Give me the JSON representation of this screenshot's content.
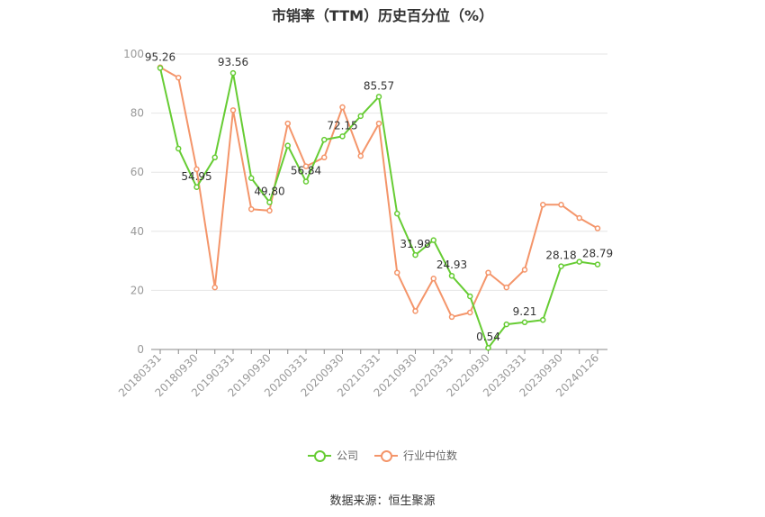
{
  "chart_data": {
    "type": "line",
    "title": "市销率（TTM）历史百分位（%）",
    "ylim": [
      0,
      100
    ],
    "yticks": [
      0,
      20,
      40,
      60,
      80,
      100
    ],
    "x": [
      "20180331",
      "20180630",
      "20180930",
      "20181231",
      "20190331",
      "20190630",
      "20190930",
      "20191231",
      "20200331",
      "20200630",
      "20200930",
      "20201231",
      "20210331",
      "20210630",
      "20210930",
      "20211231",
      "20220331",
      "20220630",
      "20220930",
      "20221231",
      "20230331",
      "20230630",
      "20230930",
      "20231231",
      "20240126"
    ],
    "xtick_labels": [
      "20180331",
      "20180930",
      "20190331",
      "20190930",
      "20200331",
      "20200930",
      "20210331",
      "20210930",
      "20220331",
      "20220930",
      "20230331",
      "20230930",
      "20240126"
    ],
    "grid": true,
    "legend_position": "bottom",
    "series": [
      {
        "name": "公司",
        "color": "#66cc33",
        "values": [
          95.26,
          68.0,
          54.95,
          65.0,
          93.56,
          58.0,
          49.8,
          69.0,
          56.84,
          71.0,
          72.15,
          79.0,
          85.57,
          46.0,
          31.98,
          37.0,
          24.93,
          18.0,
          0.54,
          8.5,
          9.21,
          10.0,
          28.18,
          29.7,
          28.79
        ],
        "labels": [
          "95.26",
          null,
          "54.95",
          null,
          "93.56",
          null,
          "49.80",
          null,
          "56.84",
          null,
          "72.15",
          null,
          "85.57",
          null,
          "31.98",
          null,
          "24.93",
          null,
          "0.54",
          null,
          "9.21",
          null,
          "28.18",
          null,
          "28.79"
        ]
      },
      {
        "name": "行业中位数",
        "color": "#f4956a",
        "values": [
          95.5,
          92.0,
          61.0,
          21.0,
          81.0,
          47.5,
          47.0,
          76.5,
          62.0,
          65.0,
          82.0,
          65.5,
          76.5,
          26.0,
          13.0,
          24.0,
          11.0,
          12.5,
          26.0,
          21.0,
          27.0,
          49.0,
          49.0,
          44.5,
          41.0
        ]
      }
    ]
  },
  "source": "数据来源：恒生聚源"
}
